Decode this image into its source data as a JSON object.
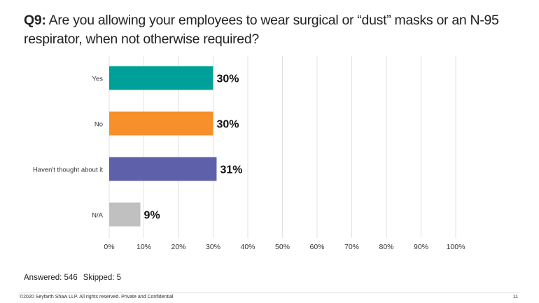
{
  "slide": {
    "title_prefix": "Q9:",
    "title_text": " Are you allowing your employees to wear surgical or “dust” masks or an N-95 respirator, when not otherwise required?",
    "answered": "Answered: 546",
    "skipped": "Skipped: 5",
    "copyright": "©2020 Seyfarth Shaw LLP. All rights reserved. Private and Confidential",
    "page_number": "11"
  },
  "chart_data": {
    "type": "bar",
    "orientation": "horizontal",
    "title": "Q9: Are you allowing your employees to wear surgical or “dust” masks or an N-95 respirator, when not otherwise required?",
    "categories": [
      "Yes",
      "No",
      "Haven't thought about it",
      "N/A"
    ],
    "values": [
      30,
      30,
      31,
      9
    ],
    "data_labels": [
      "30%",
      "30%",
      "31%",
      "9%"
    ],
    "colors": [
      "#00a09a",
      "#f7902a",
      "#5e60aa",
      "#c0c0c0"
    ],
    "xlim": [
      0,
      100
    ],
    "xticks": [
      "0%",
      "10%",
      "20%",
      "30%",
      "40%",
      "50%",
      "60%",
      "70%",
      "80%",
      "90%",
      "100%"
    ],
    "grid": true,
    "xlabel": "",
    "ylabel": ""
  }
}
